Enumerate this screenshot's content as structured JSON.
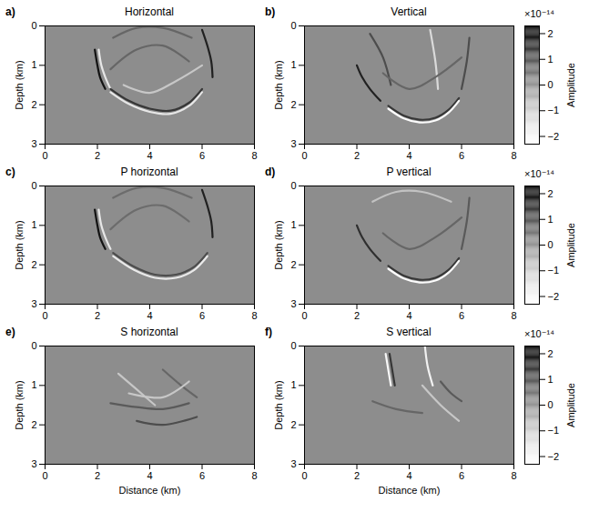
{
  "chart_data": [
    {
      "type": "image",
      "panel": "a)",
      "title": "Horizontal",
      "y_label": "Depth (km)",
      "xlim": [
        0,
        8
      ],
      "xticks": [
        0,
        2,
        4,
        6,
        8
      ],
      "ylim": [
        3,
        0
      ],
      "yticks": [
        0,
        1,
        2,
        3
      ],
      "events": [
        {
          "amplitude": 2,
          "x": [
            1.9,
            2.0,
            2.1,
            2.3
          ],
          "y": [
            0.6,
            1.0,
            1.3,
            1.6
          ]
        },
        {
          "amplitude": -1.5,
          "x": [
            2.05,
            2.15,
            2.3,
            2.5
          ],
          "y": [
            0.6,
            1.0,
            1.3,
            1.6
          ]
        },
        {
          "amplitude": 1.8,
          "x": [
            6.0,
            6.2,
            6.35,
            6.4
          ],
          "y": [
            0.1,
            0.5,
            0.9,
            1.3
          ]
        },
        {
          "amplitude": 1.5,
          "x": [
            2.5,
            3.2,
            4.0,
            4.8,
            5.5,
            6.0
          ],
          "y": [
            1.6,
            1.9,
            2.1,
            2.15,
            1.95,
            1.6
          ]
        },
        {
          "amplitude": -1.5,
          "x": [
            2.5,
            3.2,
            4.0,
            4.8,
            5.5,
            6.0
          ],
          "y": [
            1.68,
            1.98,
            2.18,
            2.23,
            2.03,
            1.68
          ]
        },
        {
          "amplitude": 0.8,
          "x": [
            2.5,
            3.5,
            4.5,
            5.5
          ],
          "y": [
            1.1,
            0.6,
            0.5,
            0.9
          ]
        },
        {
          "amplitude": -0.8,
          "x": [
            3.0,
            4.0,
            5.0,
            6.0
          ],
          "y": [
            1.5,
            1.7,
            1.4,
            1.0
          ]
        },
        {
          "amplitude": 0.8,
          "x": [
            2.6,
            3.5,
            4.5,
            5.6
          ],
          "y": [
            0.3,
            0.05,
            0.05,
            0.3
          ]
        }
      ]
    },
    {
      "type": "image",
      "panel": "b)",
      "title": "Vertical",
      "y_label": "Depth (km)",
      "xlim": [
        0,
        8
      ],
      "xticks": [
        0,
        2,
        4,
        6,
        8
      ],
      "ylim": [
        3,
        0
      ],
      "yticks": [
        0,
        1,
        2,
        3
      ],
      "colorbar": {
        "range": [
          -2.3,
          2.3
        ],
        "ticks": [
          -2,
          -1,
          0,
          1,
          2
        ],
        "label": "Amplitude",
        "exponent": "×10⁻¹⁴"
      },
      "events": [
        {
          "amplitude": 1.8,
          "x": [
            2.0,
            2.2,
            2.5,
            2.9
          ],
          "y": [
            1.0,
            1.3,
            1.6,
            1.9
          ]
        },
        {
          "amplitude": 1.5,
          "x": [
            3.2,
            3.8,
            4.4,
            5.0,
            5.5,
            5.9
          ],
          "y": [
            2.03,
            2.28,
            2.38,
            2.33,
            2.13,
            1.83
          ]
        },
        {
          "amplitude": -2.2,
          "x": [
            3.2,
            3.8,
            4.4,
            5.0,
            5.5,
            5.9
          ],
          "y": [
            2.1,
            2.35,
            2.45,
            2.4,
            2.2,
            1.9
          ]
        },
        {
          "amplitude": 1.2,
          "x": [
            6.3,
            6.2,
            6.0
          ],
          "y": [
            0.3,
            0.9,
            1.6
          ]
        },
        {
          "amplitude": 1.2,
          "x": [
            2.5,
            3.0,
            3.3
          ],
          "y": [
            0.2,
            0.8,
            1.5
          ]
        },
        {
          "amplitude": -1.2,
          "x": [
            4.8,
            5.0,
            5.1
          ],
          "y": [
            0.1,
            0.9,
            1.6
          ]
        },
        {
          "amplitude": 0.8,
          "x": [
            3.0,
            4.0,
            5.0,
            6.0
          ],
          "y": [
            1.2,
            1.6,
            1.3,
            0.8
          ]
        }
      ]
    },
    {
      "type": "image",
      "panel": "c)",
      "title": "P horizontal",
      "y_label": "Depth (km)",
      "xlim": [
        0,
        8
      ],
      "xticks": [
        0,
        2,
        4,
        6,
        8
      ],
      "ylim": [
        3,
        0
      ],
      "yticks": [
        0,
        1,
        2,
        3
      ],
      "events": [
        {
          "amplitude": 2,
          "x": [
            1.9,
            2.0,
            2.1,
            2.3
          ],
          "y": [
            0.6,
            1.0,
            1.3,
            1.6
          ]
        },
        {
          "amplitude": -1.5,
          "x": [
            2.05,
            2.15,
            2.3,
            2.5
          ],
          "y": [
            0.6,
            1.0,
            1.3,
            1.6
          ]
        },
        {
          "amplitude": 1.8,
          "x": [
            6.0,
            6.2,
            6.35,
            6.4
          ],
          "y": [
            0.1,
            0.5,
            0.9,
            1.3
          ]
        },
        {
          "amplitude": 1.2,
          "x": [
            2.6,
            3.4,
            4.2,
            5.0,
            5.7,
            6.2
          ],
          "y": [
            1.7,
            2.05,
            2.25,
            2.25,
            2.05,
            1.7
          ]
        },
        {
          "amplitude": -1.6,
          "x": [
            2.6,
            3.4,
            4.2,
            5.0,
            5.7,
            6.2
          ],
          "y": [
            1.78,
            2.13,
            2.33,
            2.33,
            2.13,
            1.78
          ]
        },
        {
          "amplitude": 0.7,
          "x": [
            2.5,
            3.5,
            4.5,
            5.5
          ],
          "y": [
            1.1,
            0.6,
            0.5,
            0.9
          ]
        },
        {
          "amplitude": 0.7,
          "x": [
            2.6,
            3.5,
            4.5,
            5.6
          ],
          "y": [
            0.3,
            0.05,
            0.05,
            0.3
          ]
        }
      ]
    },
    {
      "type": "image",
      "panel": "d)",
      "title": "P vertical",
      "y_label": "Depth (km)",
      "xlim": [
        0,
        8
      ],
      "xticks": [
        0,
        2,
        4,
        6,
        8
      ],
      "ylim": [
        3,
        0
      ],
      "yticks": [
        0,
        1,
        2,
        3
      ],
      "colorbar": {
        "range": [
          -2.3,
          2.3
        ],
        "ticks": [
          -2,
          -1,
          0,
          1,
          2
        ],
        "label": "Amplitude",
        "exponent": "×10⁻¹⁴"
      },
      "events": [
        {
          "amplitude": 1.6,
          "x": [
            2.0,
            2.2,
            2.5,
            2.9
          ],
          "y": [
            1.0,
            1.3,
            1.6,
            1.9
          ]
        },
        {
          "amplitude": 1.5,
          "x": [
            3.2,
            3.8,
            4.4,
            5.0,
            5.5,
            5.9
          ],
          "y": [
            2.03,
            2.28,
            2.38,
            2.33,
            2.13,
            1.83
          ]
        },
        {
          "amplitude": -2.2,
          "x": [
            3.2,
            3.8,
            4.4,
            5.0,
            5.5,
            5.9
          ],
          "y": [
            2.1,
            2.35,
            2.45,
            2.4,
            2.2,
            1.9
          ]
        },
        {
          "amplitude": 1.0,
          "x": [
            6.3,
            6.2,
            6.0
          ],
          "y": [
            0.3,
            0.9,
            1.6
          ]
        },
        {
          "amplitude": 0.8,
          "x": [
            3.0,
            4.0,
            5.0,
            6.0
          ],
          "y": [
            1.2,
            1.6,
            1.3,
            0.8
          ]
        },
        {
          "amplitude": -0.7,
          "x": [
            2.6,
            3.5,
            4.5,
            5.6
          ],
          "y": [
            0.4,
            0.15,
            0.15,
            0.4
          ]
        }
      ]
    },
    {
      "type": "image",
      "panel": "e)",
      "title": "S horizontal",
      "y_label": "Depth (km)",
      "x_label": "Distance (km)",
      "xlim": [
        0,
        8
      ],
      "xticks": [
        0,
        2,
        4,
        6,
        8
      ],
      "ylim": [
        3,
        0
      ],
      "yticks": [
        0,
        1,
        2,
        3
      ],
      "events": [
        {
          "amplitude": 1.0,
          "x": [
            2.5,
            3.5,
            4.5,
            5.5
          ],
          "y": [
            1.45,
            1.55,
            1.6,
            1.45
          ]
        },
        {
          "amplitude": 1.2,
          "x": [
            3.5,
            4.5,
            5.8
          ],
          "y": [
            1.9,
            2.0,
            1.8
          ]
        },
        {
          "amplitude": -0.8,
          "x": [
            2.8,
            3.5,
            4.2
          ],
          "y": [
            0.7,
            1.1,
            1.5
          ]
        },
        {
          "amplitude": 0.8,
          "x": [
            4.5,
            5.2,
            5.8
          ],
          "y": [
            0.6,
            1.0,
            1.3
          ]
        },
        {
          "amplitude": -0.8,
          "x": [
            3.2,
            4.5,
            5.5
          ],
          "y": [
            1.2,
            1.3,
            0.9
          ]
        }
      ]
    },
    {
      "type": "image",
      "panel": "f)",
      "title": "S vertical",
      "y_label": "Depth (km)",
      "x_label": "Distance (km)",
      "xlim": [
        0,
        8
      ],
      "xticks": [
        0,
        2,
        4,
        6,
        8
      ],
      "ylim": [
        3,
        0
      ],
      "yticks": [
        0,
        1,
        2,
        3
      ],
      "colorbar": {
        "range": [
          -2.3,
          2.3
        ],
        "ticks": [
          -2,
          -1,
          0,
          1,
          2
        ],
        "label": "Amplitude",
        "exponent": "×10⁻¹⁴"
      },
      "events": [
        {
          "amplitude": -2,
          "x": [
            3.1,
            3.2,
            3.3
          ],
          "y": [
            0.2,
            0.6,
            1.0
          ]
        },
        {
          "amplitude": 1.5,
          "x": [
            3.25,
            3.35,
            3.45
          ],
          "y": [
            0.2,
            0.6,
            1.0
          ]
        },
        {
          "amplitude": -1.8,
          "x": [
            4.6,
            4.7,
            4.9
          ],
          "y": [
            0.0,
            0.5,
            1.0
          ]
        },
        {
          "amplitude": 0.8,
          "x": [
            2.6,
            3.5,
            4.5
          ],
          "y": [
            1.4,
            1.6,
            1.7
          ]
        },
        {
          "amplitude": -0.8,
          "x": [
            4.5,
            5.2,
            5.9
          ],
          "y": [
            1.0,
            1.5,
            1.9
          ]
        },
        {
          "amplitude": 1.0,
          "x": [
            5.2,
            5.6,
            6.0
          ],
          "y": [
            0.9,
            1.2,
            1.4
          ]
        }
      ]
    }
  ]
}
